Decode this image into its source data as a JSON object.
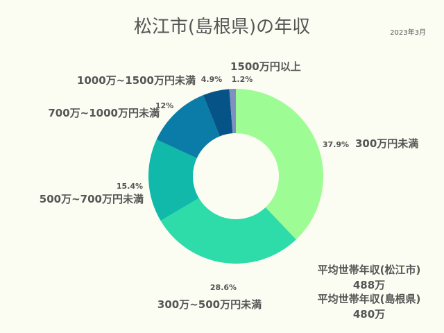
{
  "title": "松江市(島根県)の年収",
  "date": "2023年3月",
  "chart_data": {
    "type": "pie",
    "title": "松江市(島根県)の年収",
    "categories": [
      "300万円未満",
      "300万~500万円未満",
      "500万~700万円未満",
      "700万~1000万円未満",
      "1000万~1500万円未満",
      "1500万円以上"
    ],
    "values": [
      37.9,
      28.6,
      15.4,
      12,
      4.9,
      1.2
    ],
    "value_labels": [
      "37.9%",
      "28.6%",
      "15.4%",
      "12%",
      "4.9%",
      "1.2%"
    ],
    "colors": [
      "#9efc94",
      "#2ddca8",
      "#10b9a9",
      "#0b7ca8",
      "#065487",
      "#7f8fbf"
    ],
    "donut": true,
    "start": "top, clockwise"
  },
  "averages": [
    {
      "label": "平均世帯年収(松江市)",
      "value": "488万"
    },
    {
      "label": "平均世帯年収(島根県)",
      "value": "480万"
    }
  ]
}
